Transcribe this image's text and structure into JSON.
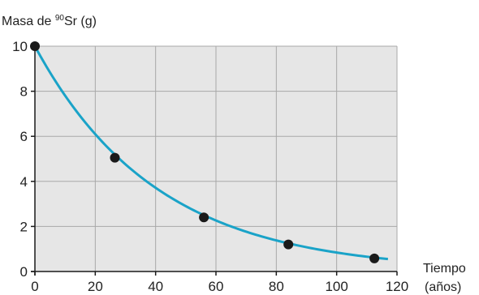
{
  "chart_data": {
    "type": "scatter",
    "ylabel": {
      "prefix": "Masa de ",
      "sup": "90",
      "suffix": "Sr (g)"
    },
    "xlabel": [
      "Tiempo",
      "(años)"
    ],
    "x_ticks": [
      0,
      20,
      40,
      60,
      80,
      100,
      120
    ],
    "y_ticks": [
      0,
      2,
      4,
      6,
      8,
      10
    ],
    "xlim": [
      0,
      120
    ],
    "ylim": [
      0,
      10
    ],
    "grid": true,
    "colors": {
      "curve": "#1aa3c8",
      "points": "#1a1a1a",
      "plot_bg": "#e6e6e6",
      "grid": "#a8a8a8"
    },
    "points": [
      {
        "x": 0,
        "y": 10
      },
      {
        "x": 26.5,
        "y": 5.05
      },
      {
        "x": 56,
        "y": 2.4
      },
      {
        "x": 84,
        "y": 1.2
      },
      {
        "x": 112.5,
        "y": 0.58
      }
    ],
    "curve": {
      "model": "exponential decay",
      "initial": 10,
      "half_life": 28,
      "x_range": [
        0,
        117
      ]
    }
  }
}
